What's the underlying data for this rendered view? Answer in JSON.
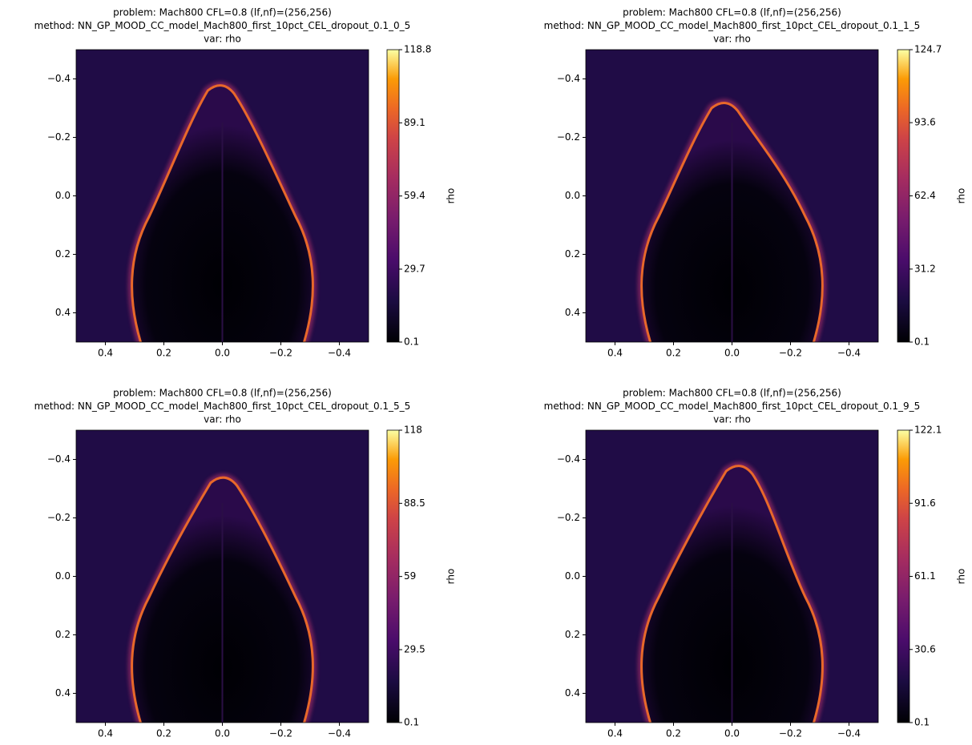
{
  "chart_data": [
    {
      "type": "heatmap",
      "title": [
        "problem: Mach800 CFL=0.8 (lf,nf)=(256,256)",
        "method: NN_GP_MOOD_CC_model_Mach800_first_10pct_CEL_dropout_0.1_0_5",
        "var: rho"
      ],
      "xlim": [
        0.5,
        -0.5
      ],
      "xticks": [
        0.4,
        0.2,
        {
          "value": 0,
          "label": "0.0"
        },
        {
          "value": -0.2,
          "label": "−0.2"
        },
        {
          "value": -0.4,
          "label": "−0.4"
        }
      ],
      "ylim": [
        -0.5,
        0.5
      ],
      "yticks": [
        {
          "value": -0.4,
          "label": "−0.4"
        },
        {
          "value": -0.2,
          "label": "−0.2"
        },
        {
          "value": 0,
          "label": "0.0"
        },
        0.2,
        0.4
      ],
      "colormap": "inferno",
      "clim": [
        0.1,
        118.8
      ],
      "cticks": [
        0.1,
        29.7,
        59.4,
        89.1,
        118.8
      ],
      "colorbar_label": "rho"
    },
    {
      "type": "heatmap",
      "title": [
        "problem: Mach800 CFL=0.8 (lf,nf)=(256,256)",
        "method: NN_GP_MOOD_CC_model_Mach800_first_10pct_CEL_dropout_0.1_1_5",
        "var: rho"
      ],
      "xlim": [
        0.5,
        -0.5
      ],
      "xticks": [
        0.4,
        0.2,
        {
          "value": 0,
          "label": "0.0"
        },
        {
          "value": -0.2,
          "label": "−0.2"
        },
        {
          "value": -0.4,
          "label": "−0.4"
        }
      ],
      "ylim": [
        -0.5,
        0.5
      ],
      "yticks": [
        {
          "value": -0.4,
          "label": "−0.4"
        },
        {
          "value": -0.2,
          "label": "−0.2"
        },
        {
          "value": 0,
          "label": "0.0"
        },
        0.2,
        0.4
      ],
      "colormap": "inferno",
      "clim": [
        0.1,
        124.7
      ],
      "cticks": [
        0.1,
        31.2,
        62.4,
        93.6,
        124.7
      ],
      "colorbar_label": "rho"
    },
    {
      "type": "heatmap",
      "title": [
        "problem: Mach800 CFL=0.8 (lf,nf)=(256,256)",
        "method: NN_GP_MOOD_CC_model_Mach800_first_10pct_CEL_dropout_0.1_5_5",
        "var: rho"
      ],
      "xlim": [
        0.5,
        -0.5
      ],
      "xticks": [
        0.4,
        0.2,
        {
          "value": 0,
          "label": "0.0"
        },
        {
          "value": -0.2,
          "label": "−0.2"
        },
        {
          "value": -0.4,
          "label": "−0.4"
        }
      ],
      "ylim": [
        -0.5,
        0.5
      ],
      "yticks": [
        {
          "value": -0.4,
          "label": "−0.4"
        },
        {
          "value": -0.2,
          "label": "−0.2"
        },
        {
          "value": 0,
          "label": "0.0"
        },
        0.2,
        0.4
      ],
      "colormap": "inferno",
      "clim": [
        0.1,
        118.0
      ],
      "cticks": [
        0.1,
        29.5,
        59.0,
        88.5,
        118.0
      ],
      "colorbar_label": "rho"
    },
    {
      "type": "heatmap",
      "title": [
        "problem: Mach800 CFL=0.8 (lf,nf)=(256,256)",
        "method: NN_GP_MOOD_CC_model_Mach800_first_10pct_CEL_dropout_0.1_9_5",
        "var: rho"
      ],
      "xlim": [
        0.5,
        -0.5
      ],
      "xticks": [
        0.4,
        0.2,
        {
          "value": 0,
          "label": "0.0"
        },
        {
          "value": -0.2,
          "label": "−0.2"
        },
        {
          "value": -0.4,
          "label": "−0.4"
        }
      ],
      "ylim": [
        -0.5,
        0.5
      ],
      "yticks": [
        {
          "value": -0.4,
          "label": "−0.4"
        },
        {
          "value": -0.2,
          "label": "−0.2"
        },
        {
          "value": 0,
          "label": "0.0"
        },
        0.2,
        0.4
      ],
      "colormap": "inferno",
      "clim": [
        0.1,
        122.1
      ],
      "cticks": [
        0.1,
        30.6,
        61.1,
        91.6,
        122.1
      ],
      "colorbar_label": "rho"
    }
  ]
}
